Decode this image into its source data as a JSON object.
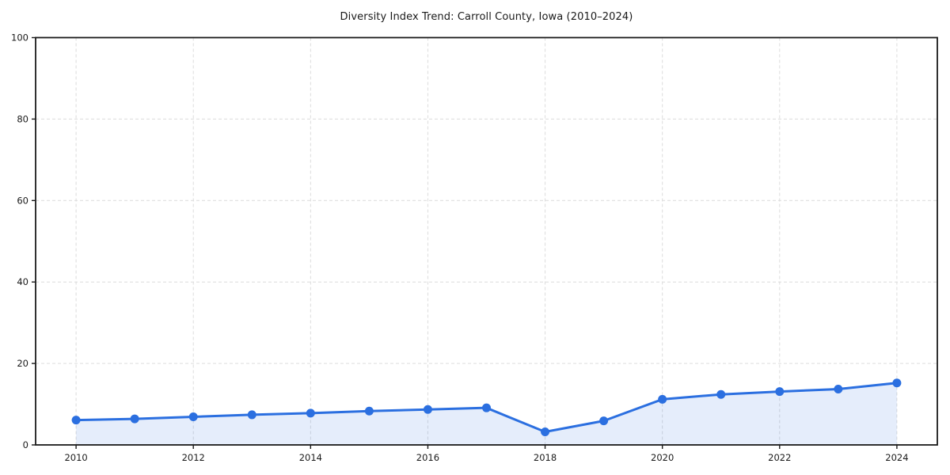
{
  "figure": {
    "title": "Diversity Index Trend: Carroll County, Iowa (2010–2024)"
  },
  "chart_data": {
    "type": "area",
    "title": "Diversity Index Trend: Carroll County, Iowa (2010–2024)",
    "series_name": "Diversity Index",
    "x": [
      2010,
      2011,
      2012,
      2013,
      2014,
      2015,
      2016,
      2017,
      2018,
      2019,
      2020,
      2021,
      2022,
      2023,
      2024
    ],
    "values": [
      6.1,
      6.4,
      6.9,
      7.4,
      7.8,
      8.3,
      8.7,
      9.1,
      3.2,
      5.9,
      11.2,
      12.4,
      13.1,
      13.7,
      15.2
    ],
    "xlabel": "",
    "ylabel": "",
    "xlim": [
      2009.31,
      2024.69
    ],
    "ylim": [
      0,
      100
    ],
    "xticks": [
      2010,
      2012,
      2014,
      2016,
      2018,
      2020,
      2022,
      2024
    ],
    "yticks": [
      0,
      20,
      40,
      60,
      80,
      100
    ],
    "grid": true,
    "grid_style": "dashed",
    "legend_position": "none",
    "marker": "circle",
    "colors": {
      "line": "#2b6fe0",
      "marker": "#2b6fe0",
      "fill": "rgba(43,111,224,0.12)",
      "grid": "#dcdcdc",
      "spine": "#1a1a1a",
      "text": "#1a1a1a",
      "background": "#ffffff"
    }
  }
}
